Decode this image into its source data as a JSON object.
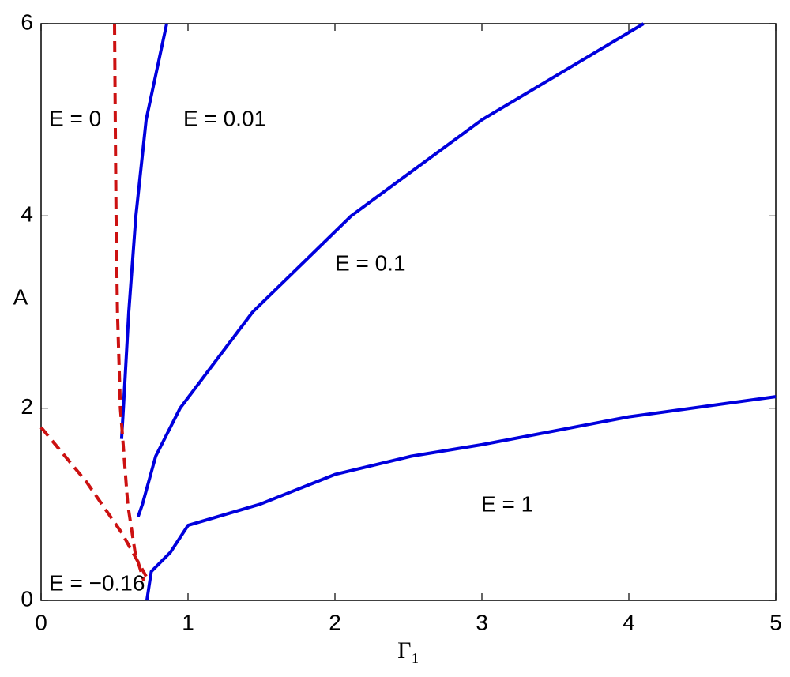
{
  "chart_data": {
    "type": "line",
    "xlabel": "Γ₁",
    "ylabel": "A",
    "xlim": [
      0,
      5
    ],
    "ylim": [
      0,
      6
    ],
    "xticks": [
      0,
      1,
      2,
      3,
      4,
      5
    ],
    "yticks": [
      0,
      2,
      4,
      6
    ],
    "grid": false,
    "series": [
      {
        "color": "#0000dd",
        "dash": false,
        "x": [
          0.548,
          0.56,
          0.597,
          0.645,
          0.715,
          0.855
        ],
        "values": [
          1.68,
          2,
          3,
          4,
          5,
          6
        ]
      },
      {
        "color": "#0000dd",
        "dash": false,
        "x": [
          0.66,
          0.69,
          0.78,
          0.946,
          1.44,
          2.11,
          3.0,
          4.1
        ],
        "values": [
          0.87,
          1,
          1.5,
          2,
          3,
          4,
          5,
          6
        ]
      },
      {
        "color": "#0000dd",
        "dash": false,
        "x": [
          0.72,
          0.75,
          0.88,
          1,
          1.49,
          2,
          2.52,
          3,
          4,
          5
        ],
        "values": [
          0,
          0.3,
          0.5,
          0.78,
          1,
          1.31,
          1.5,
          1.62,
          1.91,
          2.12
        ]
      },
      {
        "color": "#cc1111",
        "dash": true,
        "x": [
          0.5,
          0.505,
          0.51,
          0.52,
          0.54,
          0.59,
          0.64,
          0.7
        ],
        "values": [
          6,
          5,
          4,
          3,
          2,
          1,
          0.5,
          0.2
        ]
      },
      {
        "color": "#cc1111",
        "dash": true,
        "x": [
          0,
          0.31,
          0.55,
          0.715
        ],
        "values": [
          1.8,
          1.23,
          0.7,
          0.25
        ]
      }
    ],
    "annotations": [
      "E = 0",
      "E = 0.01",
      "E = 0.1",
      "E = 1",
      "E = −0.16"
    ]
  }
}
